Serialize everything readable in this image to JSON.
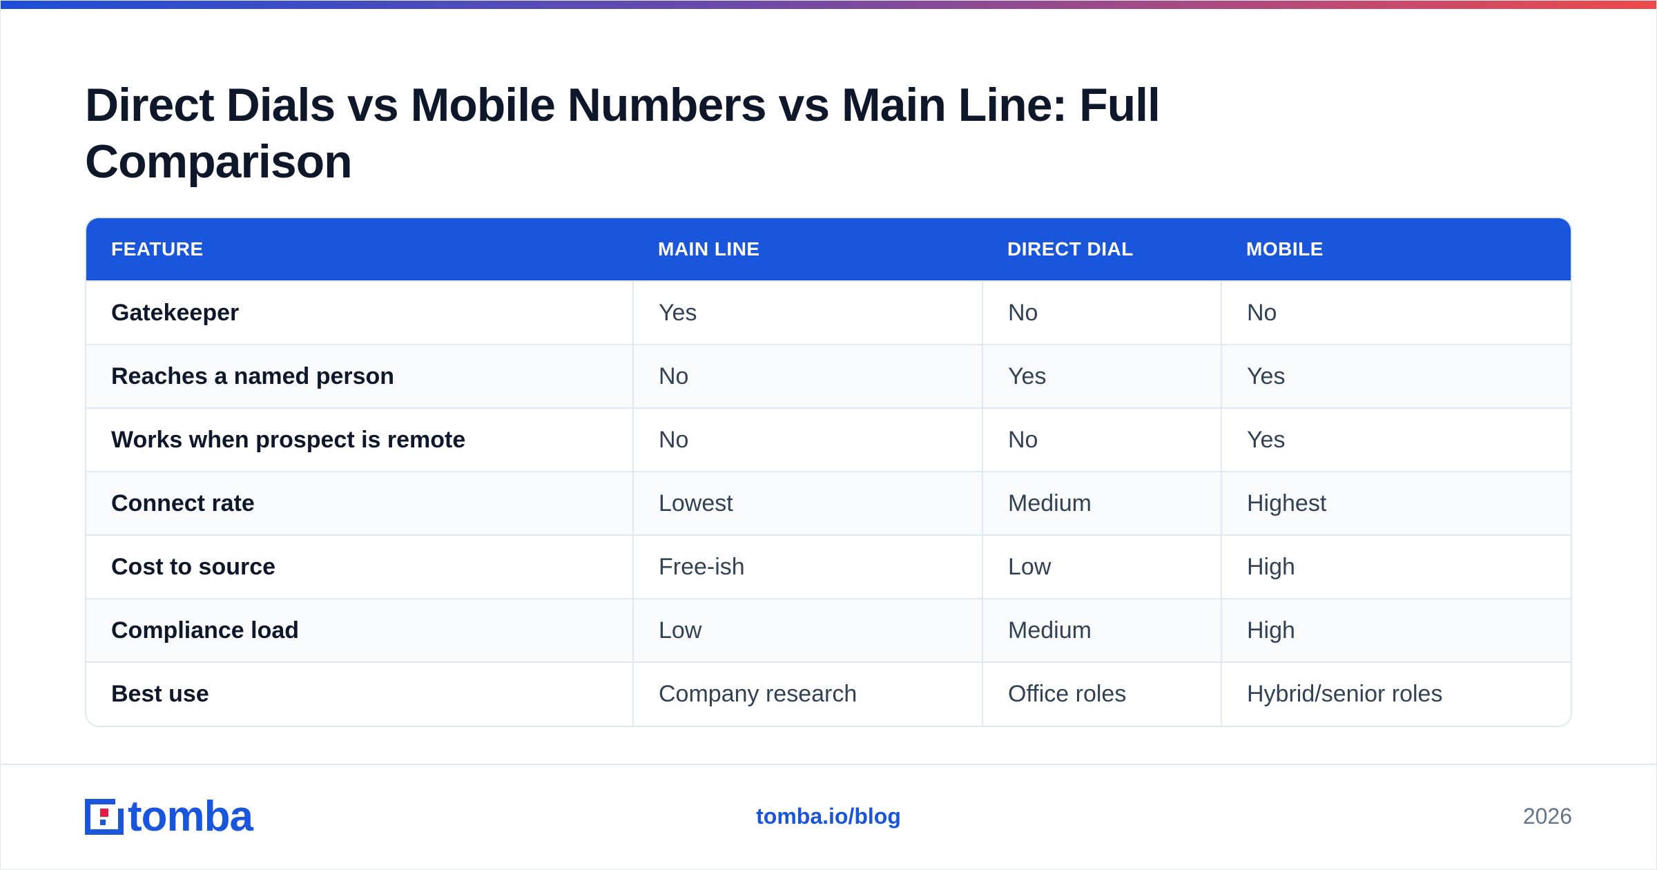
{
  "title": "Direct Dials vs Mobile Numbers vs Main Line: Full Comparison",
  "colors": {
    "accent": "#1a56db",
    "header_bg": "#1a56db",
    "alt_row": "#f8fafc",
    "border": "#e2e8f0",
    "text_dark": "#0f172a",
    "text_muted": "#64748b",
    "gradient_start": "#1d4ed8",
    "gradient_end": "#ec4a4a",
    "logo_red": "#e11d48"
  },
  "table": {
    "headers": [
      "FEATURE",
      "MAIN LINE",
      "DIRECT DIAL",
      "MOBILE"
    ],
    "rows": [
      [
        "Gatekeeper",
        "Yes",
        "No",
        "No"
      ],
      [
        "Reaches a named person",
        "No",
        "Yes",
        "Yes"
      ],
      [
        "Works when prospect is remote",
        "No",
        "No",
        "Yes"
      ],
      [
        "Connect rate",
        "Lowest",
        "Medium",
        "Highest"
      ],
      [
        "Cost to source",
        "Free-ish",
        "Low",
        "High"
      ],
      [
        "Compliance load",
        "Low",
        "Medium",
        "High"
      ],
      [
        "Best use",
        "Company research",
        "Office roles",
        "Hybrid/senior roles"
      ]
    ]
  },
  "footer": {
    "logo_text": "tomba",
    "url": "tomba.io/blog",
    "year": "2026"
  }
}
